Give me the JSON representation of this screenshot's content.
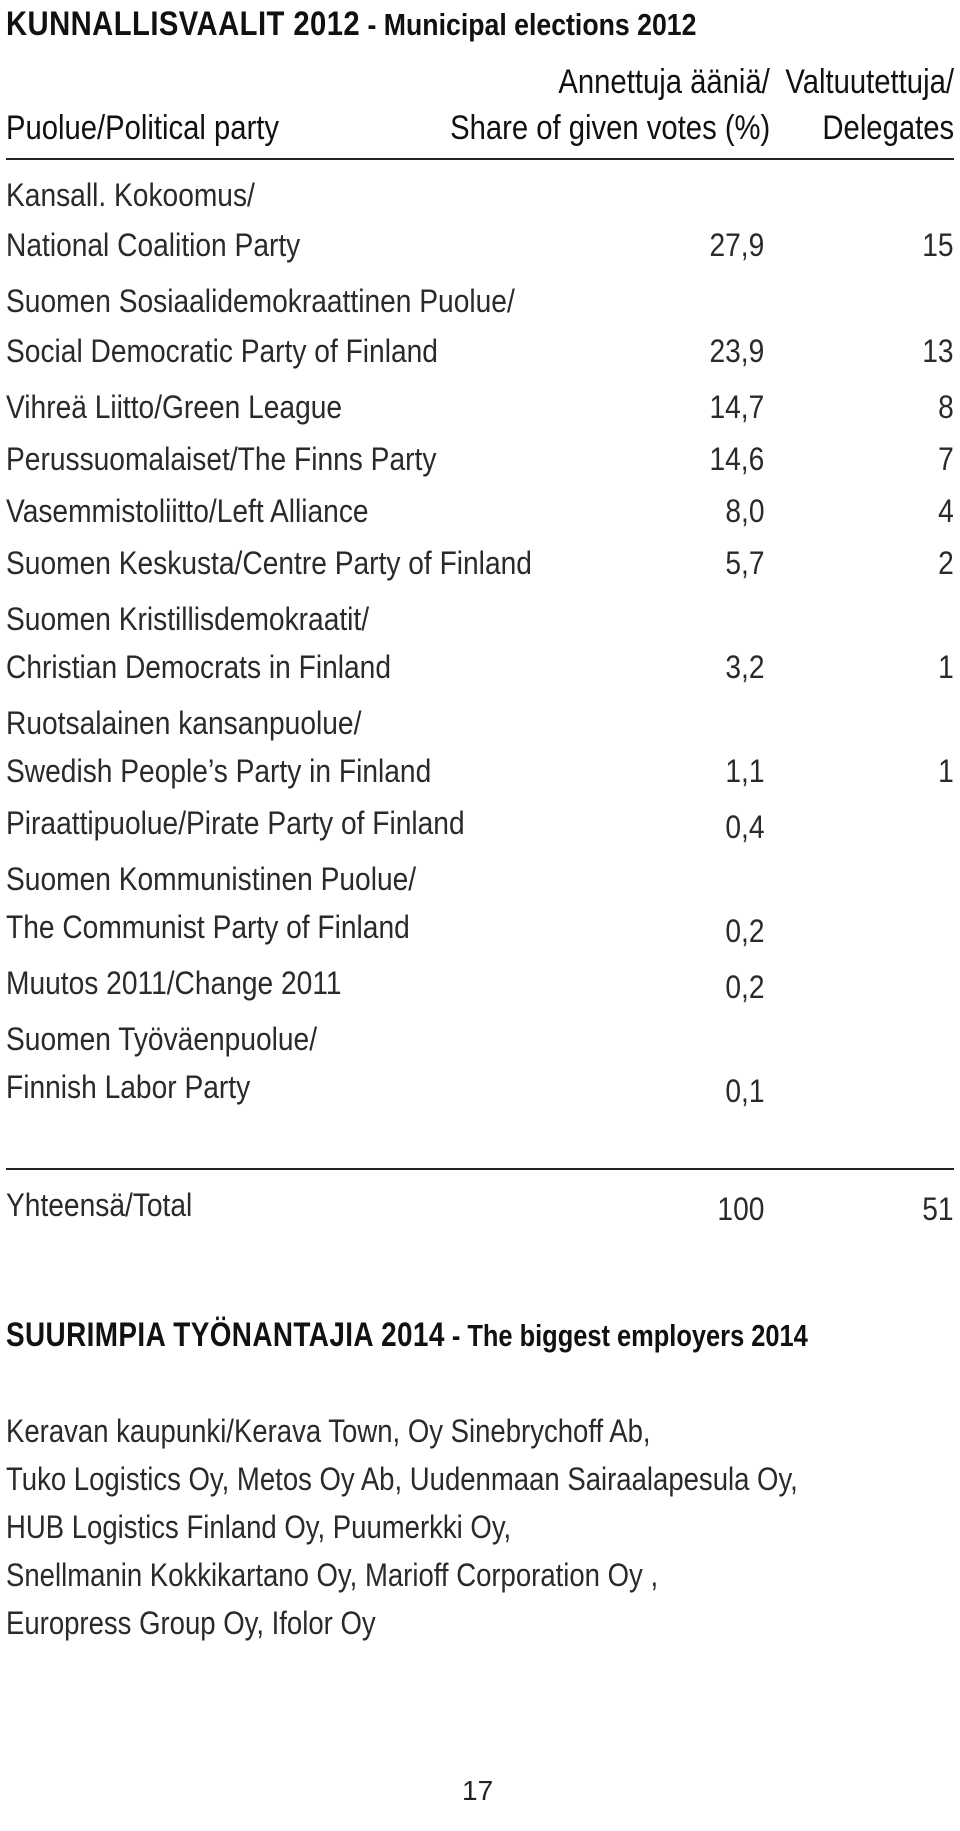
{
  "elections": {
    "title_caps": "KUNNALLISVAALIT 2012",
    "title_rest": " - Municipal elections 2012",
    "headers": {
      "party": "Puolue/Political party",
      "share_line1": "Annettuja ääniä/",
      "share_line2": "Share of given votes (%)",
      "delegates_line1": "Valtuutettuja/",
      "delegates_line2": "Delegates"
    },
    "rows": [
      {
        "line1": "Kansall. Kokoomus/",
        "line2": "National Coalition Party",
        "share": "27,9",
        "delegates": "15"
      },
      {
        "line1": "Suomen Sosiaalidemokraattinen Puolue/",
        "line2": "Social Democratic Party of Finland",
        "share": "23,9",
        "delegates": "13"
      },
      {
        "line1": "",
        "line2": "Vihreä Liitto/Green League",
        "share": "14,7",
        "delegates": "8"
      },
      {
        "line1": "",
        "line2": "Perussuomalaiset/The Finns Party",
        "share": "14,6",
        "delegates": "7"
      },
      {
        "line1": "",
        "line2": "Vasemmistoliitto/Left Alliance",
        "share": "8,0",
        "delegates": "4"
      },
      {
        "line1": "",
        "line2": "Suomen Keskusta/Centre Party of Finland",
        "share": "5,7",
        "delegates": "2"
      },
      {
        "line1": "Suomen Kristillisdemokraatit/",
        "line2": "Christian Democrats in Finland",
        "share": "3,2",
        "delegates": "1"
      },
      {
        "line1": "Ruotsalainen kansanpuolue/",
        "line2": "Swedish People’s Party in Finland",
        "share": "1,1",
        "delegates": "1"
      },
      {
        "line1": "",
        "line2": "Piraattipuolue/Pirate Party of Finland",
        "share": "0,4",
        "delegates": ""
      },
      {
        "line1": "Suomen Kommunistinen Puolue/",
        "line2": "The Communist Party of Finland",
        "share": "0,2",
        "delegates": ""
      },
      {
        "line1": "",
        "line2": "Muutos 2011/Change 2011",
        "share": "0,2",
        "delegates": ""
      },
      {
        "line1": "Suomen Työväenpuolue/",
        "line2": "Finnish Labor Party",
        "share": "0,1",
        "delegates": ""
      }
    ],
    "total": {
      "label": "Yhteensä/Total",
      "share": "100",
      "delegates": "51"
    }
  },
  "employers": {
    "title_caps": "SUURIMPIA TYÖNANTAJIA 2014",
    "title_rest": " - The biggest employers 2014",
    "lines": [
      "Keravan kaupunki/Kerava Town, Oy Sinebrychoff Ab,",
      "Tuko Logistics Oy, Metos Oy Ab, Uudenmaan Sairaalapesula Oy,",
      "HUB Logistics Finland Oy, Puumerkki Oy,",
      "Snellmanin Kokkikartano Oy, Marioff Corporation Oy ,",
      "Europress Group Oy, Ifolor Oy"
    ]
  },
  "page_number": "17"
}
